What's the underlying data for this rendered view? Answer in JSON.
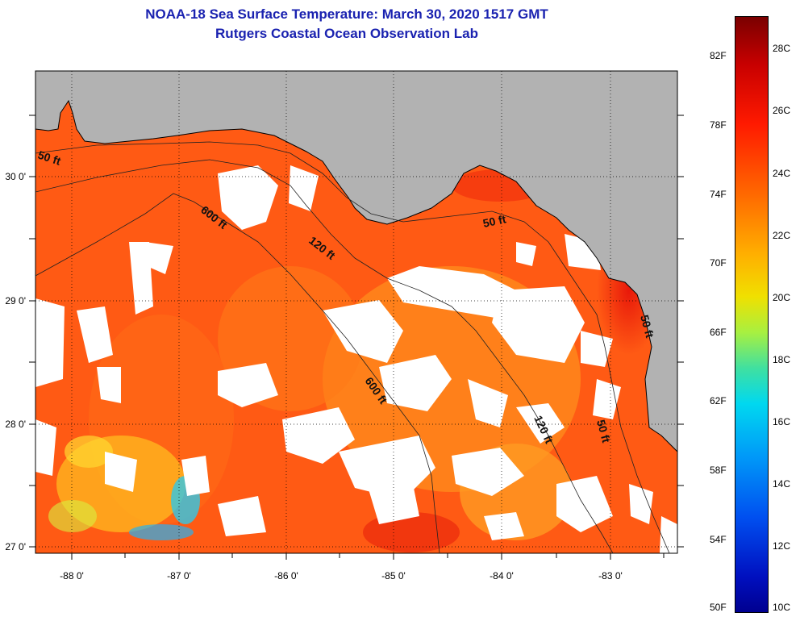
{
  "title": {
    "line1": "NOAA-18 Sea Surface Temperature:  March 30, 2020 1517 GMT",
    "line2": "Rutgers Coastal Ocean Observation Lab"
  },
  "map": {
    "lon_labels": [
      "-88 0'",
      "-87 0'",
      "-86 0'",
      "-85 0'",
      "-84 0'",
      "-83 0'"
    ],
    "lat_labels": [
      "30 0'",
      "29 0'",
      "28 0'",
      "27 0'"
    ],
    "contour_labels": [
      "50 ft",
      "600 ft",
      "120 ft",
      "50 ft",
      "600 ft",
      "120 ft",
      "50 ft",
      "50 ft"
    ]
  },
  "colorbar": {
    "fahrenheit_labels": [
      "82F",
      "78F",
      "74F",
      "70F",
      "66F",
      "62F",
      "58F",
      "54F",
      "50F"
    ],
    "celsius_labels": [
      "28C",
      "26C",
      "24C",
      "22C",
      "20C",
      "18C",
      "16C",
      "14C",
      "12C",
      "10C"
    ]
  },
  "colors": {
    "land": "#b2b2b2",
    "cloud": "#ffffff",
    "ocean_warm": "#ff4a10",
    "ocean_mid": "#ff8a1c",
    "title": "#1a22b0"
  }
}
